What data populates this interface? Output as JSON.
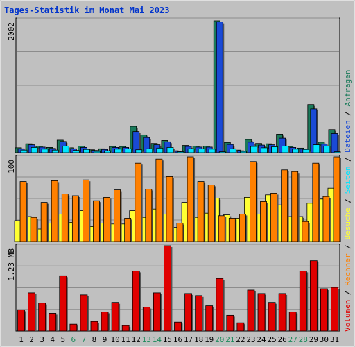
{
  "chart_data": {
    "type": "bar",
    "title": "Tages-Statistik im Monat Mai 2023",
    "days": [
      "1",
      "2",
      "3",
      "4",
      "5",
      "6",
      "7",
      "8",
      "9",
      "10",
      "11",
      "12",
      "13",
      "14",
      "15",
      "16",
      "17",
      "18",
      "19",
      "20",
      "21",
      "22",
      "23",
      "24",
      "25",
      "26",
      "27",
      "28",
      "29",
      "30",
      "31"
    ],
    "weekend_days": [
      "6",
      "7",
      "13",
      "14",
      "20",
      "21",
      "27",
      "28"
    ],
    "colors": {
      "day_normal": "#000000",
      "day_weekend": "#1a8a5a",
      "anfragen": "#1a7a5a",
      "dateien": "#1a4ad6",
      "seiten": "#00e5ff",
      "besuche": "#ffff33",
      "rechner": "#ff8000",
      "volumen": "#e00000",
      "background": "#c0c0c0",
      "gridline": "#8c8c8c"
    },
    "panels": [
      {
        "name": "requests",
        "y_tick_label": "2002",
        "ymax": 2002,
        "series": [
          {
            "name": "Anfragen",
            "values": [
              75,
              135,
              100,
              80,
              190,
              75,
              100,
              45,
              60,
              95,
              95,
              400,
              270,
              140,
              185,
              30,
              110,
              100,
              100,
              2002,
              155,
              40,
              200,
              140,
              135,
              280,
              95,
              70,
              730,
              160,
              350
            ]
          },
          {
            "name": "Dateien",
            "values": [
              60,
              120,
              85,
              65,
              170,
              60,
              80,
              35,
              50,
              80,
              80,
              320,
              230,
              120,
              165,
              22,
              95,
              85,
              85,
              1985,
              125,
              30,
              160,
              115,
              120,
              220,
              80,
              55,
              665,
              130,
              290
            ]
          },
          {
            "name": "Seiten",
            "values": [
              40,
              80,
              55,
              40,
              100,
              35,
              50,
              20,
              30,
              55,
              60,
              45,
              60,
              70,
              80,
              15,
              60,
              60,
              55,
              15,
              60,
              20,
              95,
              75,
              90,
              100,
              55,
              50,
              120,
              100,
              15
            ]
          }
        ],
        "right_labels": [
          "Anfragen",
          "Dateien",
          "Seiten"
        ]
      },
      {
        "name": "visits",
        "y_tick_label": "100",
        "ymax": 100,
        "series": [
          {
            "name": "Besuche",
            "values": [
              25,
              30,
              15,
              22,
              33,
              23,
              37,
              18,
              22,
              21,
              21,
              37,
              29,
              39,
              33,
              17,
              47,
              29,
              34,
              52,
              32,
              28,
              53,
              33,
              56,
              44,
              30,
              30,
              46,
              51,
              64
            ]
          },
          {
            "name": "Rechner",
            "values": [
              72,
              29,
              47,
              73,
              57,
              55,
              74,
              49,
              53,
              62,
              28,
              94,
              63,
              99,
              78,
              22,
              105,
              72,
              68,
              31,
              28,
              33,
              96,
              48,
              58,
              86,
              84,
              24,
              94,
              54,
              121
            ]
          }
        ],
        "right_labels": [
          "Besuche",
          "Rechner"
        ]
      },
      {
        "name": "volume",
        "y_tick_label": "1.23 MB",
        "ymax": 1.23,
        "series": [
          {
            "name": "Volumen",
            "values": [
              0.31,
              0.56,
              0.41,
              0.26,
              0.81,
              0.1,
              0.53,
              0.14,
              0.28,
              0.42,
              0.08,
              0.88,
              0.35,
              0.56,
              1.29,
              0.13,
              0.55,
              0.52,
              0.37,
              0.77,
              0.23,
              0.12,
              0.6,
              0.55,
              0.42,
              0.55,
              0.28,
              0.88,
              1.03,
              0.62,
              0.64
            ]
          }
        ],
        "right_labels": [
          "Volumen",
          "Rechner",
          "Besuche",
          "Seiten",
          "Dateien",
          "Anfragen"
        ]
      }
    ]
  }
}
